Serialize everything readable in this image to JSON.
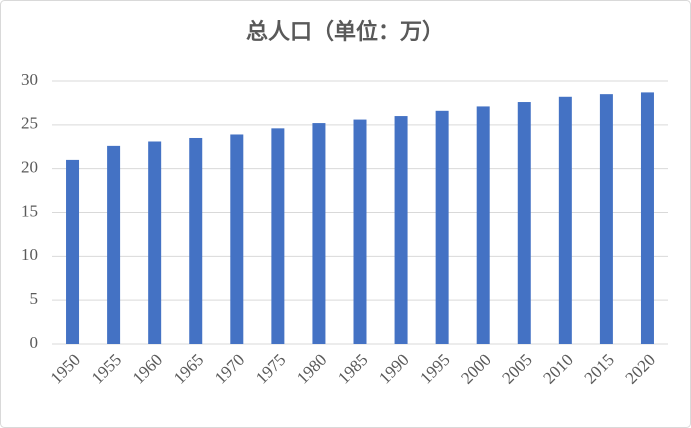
{
  "chart_data": {
    "type": "bar",
    "title": "总人口（单位：万）",
    "categories": [
      "1950",
      "1955",
      "1960",
      "1965",
      "1970",
      "1975",
      "1980",
      "1985",
      "1990",
      "1995",
      "2000",
      "2005",
      "2010",
      "2015",
      "2020"
    ],
    "values": [
      21,
      22.6,
      23.1,
      23.5,
      23.9,
      24.6,
      25.2,
      25.6,
      26,
      26.6,
      27.1,
      27.6,
      28.2,
      28.5,
      28.7
    ],
    "color": "#4472c4",
    "ylim": [
      0,
      30
    ],
    "yticks": [
      0,
      5,
      10,
      15,
      20,
      25,
      30
    ],
    "grid": true
  }
}
